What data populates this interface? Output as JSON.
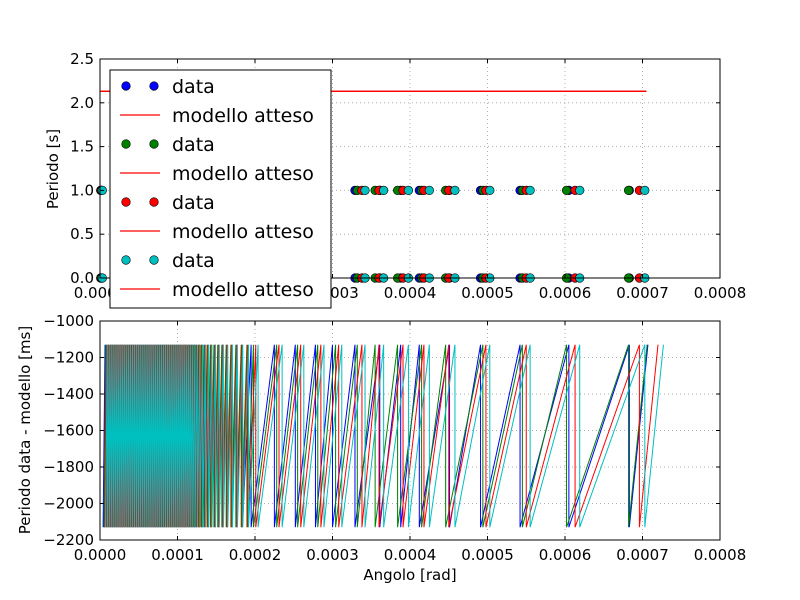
{
  "colors": {
    "series": [
      "#0000ff",
      "#008000",
      "#ff0000",
      "#00bfbf"
    ],
    "model": "#ff0000",
    "grid": "#b0b0b0",
    "frame": "#000000",
    "background": "#ffffff"
  },
  "chart_data": [
    {
      "type": "scatter",
      "title": "",
      "xlabel": "",
      "ylabel": "Periodo [s]",
      "xlim": [
        0,
        0.0008
      ],
      "ylim": [
        0,
        2.5
      ],
      "grid": true,
      "xticks": [
        0,
        0.0001,
        0.0002,
        0.0003,
        0.0004,
        0.0005,
        0.0006,
        0.0007,
        0.0008
      ],
      "xtick_labels": [
        "0.0000",
        "0.0001",
        "0.0002",
        "0.0003",
        "0.0004",
        "0.0005",
        "0.0006",
        "0.0007",
        "0.0008"
      ],
      "yticks": [
        0,
        0.5,
        1.0,
        1.5,
        2.0,
        2.5
      ],
      "ytick_labels": [
        "0.0",
        "0.5",
        "1.0",
        "1.5",
        "2.0",
        "2.5"
      ],
      "legend": {
        "position": "upper-left",
        "entries": [
          {
            "label": "data",
            "kind": "marker",
            "color": "#0000ff"
          },
          {
            "label": "modello atteso",
            "kind": "line",
            "color": "#ff0000"
          },
          {
            "label": "data",
            "kind": "marker",
            "color": "#008000"
          },
          {
            "label": "modello atteso",
            "kind": "line",
            "color": "#ff0000"
          },
          {
            "label": "data",
            "kind": "marker",
            "color": "#ff0000"
          },
          {
            "label": "modello atteso",
            "kind": "line",
            "color": "#ff0000"
          },
          {
            "label": "data",
            "kind": "marker",
            "color": "#00bfbf"
          },
          {
            "label": "modello atteso",
            "kind": "line",
            "color": "#ff0000"
          }
        ]
      },
      "series_points_x": [
        [
          1e-06,
          0.000329,
          0.000361,
          0.000388,
          0.000412,
          0.000451,
          0.000491,
          0.000542,
          0.000605,
          0.000683
        ],
        [
          1e-06,
          0.000332,
          0.000355,
          0.000384,
          0.000415,
          0.000446,
          0.000494,
          0.000545,
          0.000602,
          0.000682
        ],
        [
          2e-06,
          0.000338,
          0.00036,
          0.000391,
          0.000418,
          0.00045,
          0.000498,
          0.00055,
          0.000613,
          0.000696
        ],
        [
          3e-06,
          0.000342,
          0.000366,
          0.000398,
          0.000425,
          0.000458,
          0.000503,
          0.000555,
          0.000619,
          0.000703
        ]
      ],
      "series_levels_y": [
        0,
        1
      ],
      "model_line": {
        "x": [
          1e-06,
          0.000705
        ],
        "y": [
          2.13,
          2.13
        ]
      }
    },
    {
      "type": "line",
      "title": "",
      "xlabel": "Angolo [rad]",
      "ylabel": "Periodo data - modello [ms]",
      "xlim": [
        0,
        0.0008
      ],
      "ylim": [
        -2200,
        -1000
      ],
      "grid": true,
      "xticks": [
        0,
        0.0001,
        0.0002,
        0.0003,
        0.0004,
        0.0005,
        0.0006,
        0.0007,
        0.0008
      ],
      "xtick_labels": [
        "0.0000",
        "0.0001",
        "0.0002",
        "0.0003",
        "0.0004",
        "0.0005",
        "0.0006",
        "0.0007",
        "0.0008"
      ],
      "yticks": [
        -2200,
        -2000,
        -1800,
        -1600,
        -1400,
        -1200,
        -1000
      ],
      "ytick_labels": [
        "−2200",
        "−2000",
        "−1800",
        "−1600",
        "−1400",
        "−1200",
        "−1000"
      ],
      "sawtooth": {
        "y_low": -2130,
        "y_high": -1130,
        "dense_until": 0.000115,
        "series_jump_x": [
          [
            0.000195,
            0.000225,
            0.000252,
            0.000278,
            0.0003,
            0.000329,
            0.000361,
            0.000388,
            0.000412,
            0.000451,
            0.000491,
            0.000542,
            0.000605,
            0.000683
          ],
          [
            0.000198,
            0.000228,
            0.000255,
            0.000281,
            0.000304,
            0.000332,
            0.000355,
            0.000384,
            0.000415,
            0.000446,
            0.000494,
            0.000545,
            0.000602,
            0.000682
          ],
          [
            0.000201,
            0.000231,
            0.000259,
            0.000285,
            0.000308,
            0.000338,
            0.00036,
            0.000391,
            0.000418,
            0.00045,
            0.000498,
            0.00055,
            0.000613,
            0.000696
          ],
          [
            0.000204,
            0.000235,
            0.000263,
            0.000289,
            0.000312,
            0.000342,
            0.000366,
            0.000398,
            0.000425,
            0.000458,
            0.000503,
            0.000555,
            0.000619,
            0.000703
          ]
        ]
      }
    }
  ]
}
